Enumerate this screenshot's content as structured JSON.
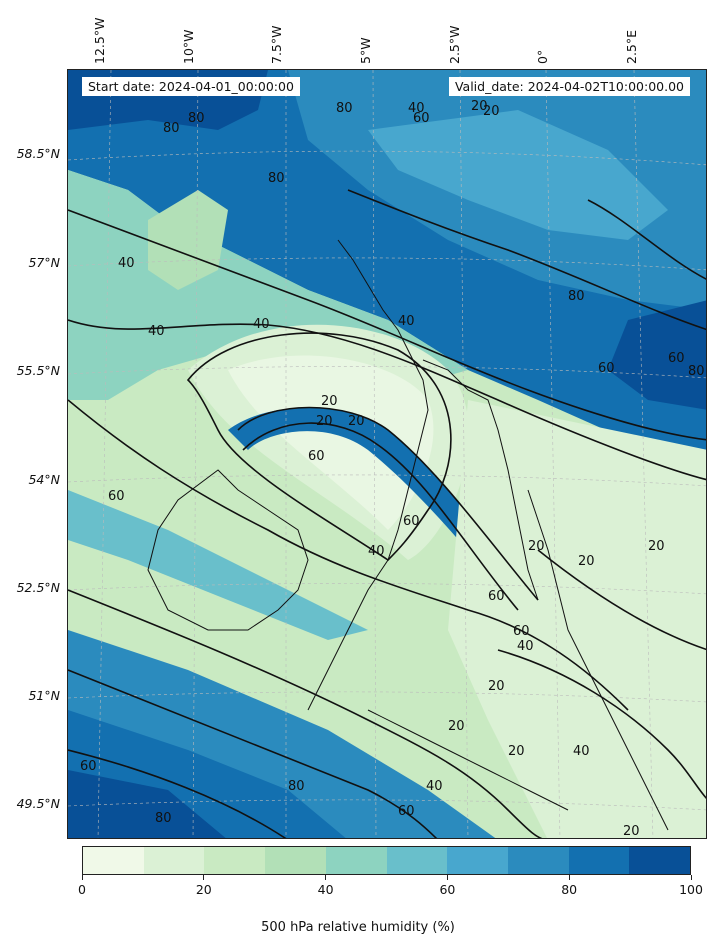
{
  "map": {
    "start_date": "Start date: 2024-04-01_00:00:00",
    "valid_date": "Valid_date: 2024-04-02T10:00:00.00",
    "longitude_labels": [
      "12.5°W",
      "10°W",
      "7.5°W",
      "5°W",
      "2.5°W",
      "0°",
      "2.5°E"
    ],
    "latitude_labels": [
      "58.5°N",
      "57°N",
      "55.5°N",
      "54°N",
      "52.5°N",
      "51°N",
      "49.5°N"
    ],
    "contour_labels": [
      "80",
      "40",
      "20",
      "60",
      "80",
      "80",
      "80",
      "40",
      "40",
      "40",
      "40",
      "20",
      "20",
      "20",
      "60",
      "60",
      "80",
      "60",
      "60",
      "20",
      "20",
      "60",
      "40",
      "60",
      "60",
      "40",
      "20",
      "20",
      "20",
      "40",
      "80",
      "60",
      "40",
      "80",
      "80",
      "60",
      "20",
      "20",
      "20"
    ],
    "colors": {
      "land_outline": "#111111",
      "contour_line": "#111111",
      "gridline": "#bbbbbb"
    }
  },
  "colorbar": {
    "title": "500 hPa relative humidity (%)",
    "tick_labels": [
      "0",
      "20",
      "40",
      "60",
      "80",
      "100"
    ],
    "range": [
      0,
      100
    ],
    "levels": [
      0,
      10,
      20,
      30,
      40,
      50,
      60,
      70,
      80,
      90,
      100
    ],
    "colors": [
      "#f0f9e8",
      "#dbf1d5",
      "#c9eac2",
      "#b2e0b7",
      "#8dd3c0",
      "#69bfcb",
      "#48a7ce",
      "#2b8bbe",
      "#1370b0",
      "#085097"
    ]
  }
}
